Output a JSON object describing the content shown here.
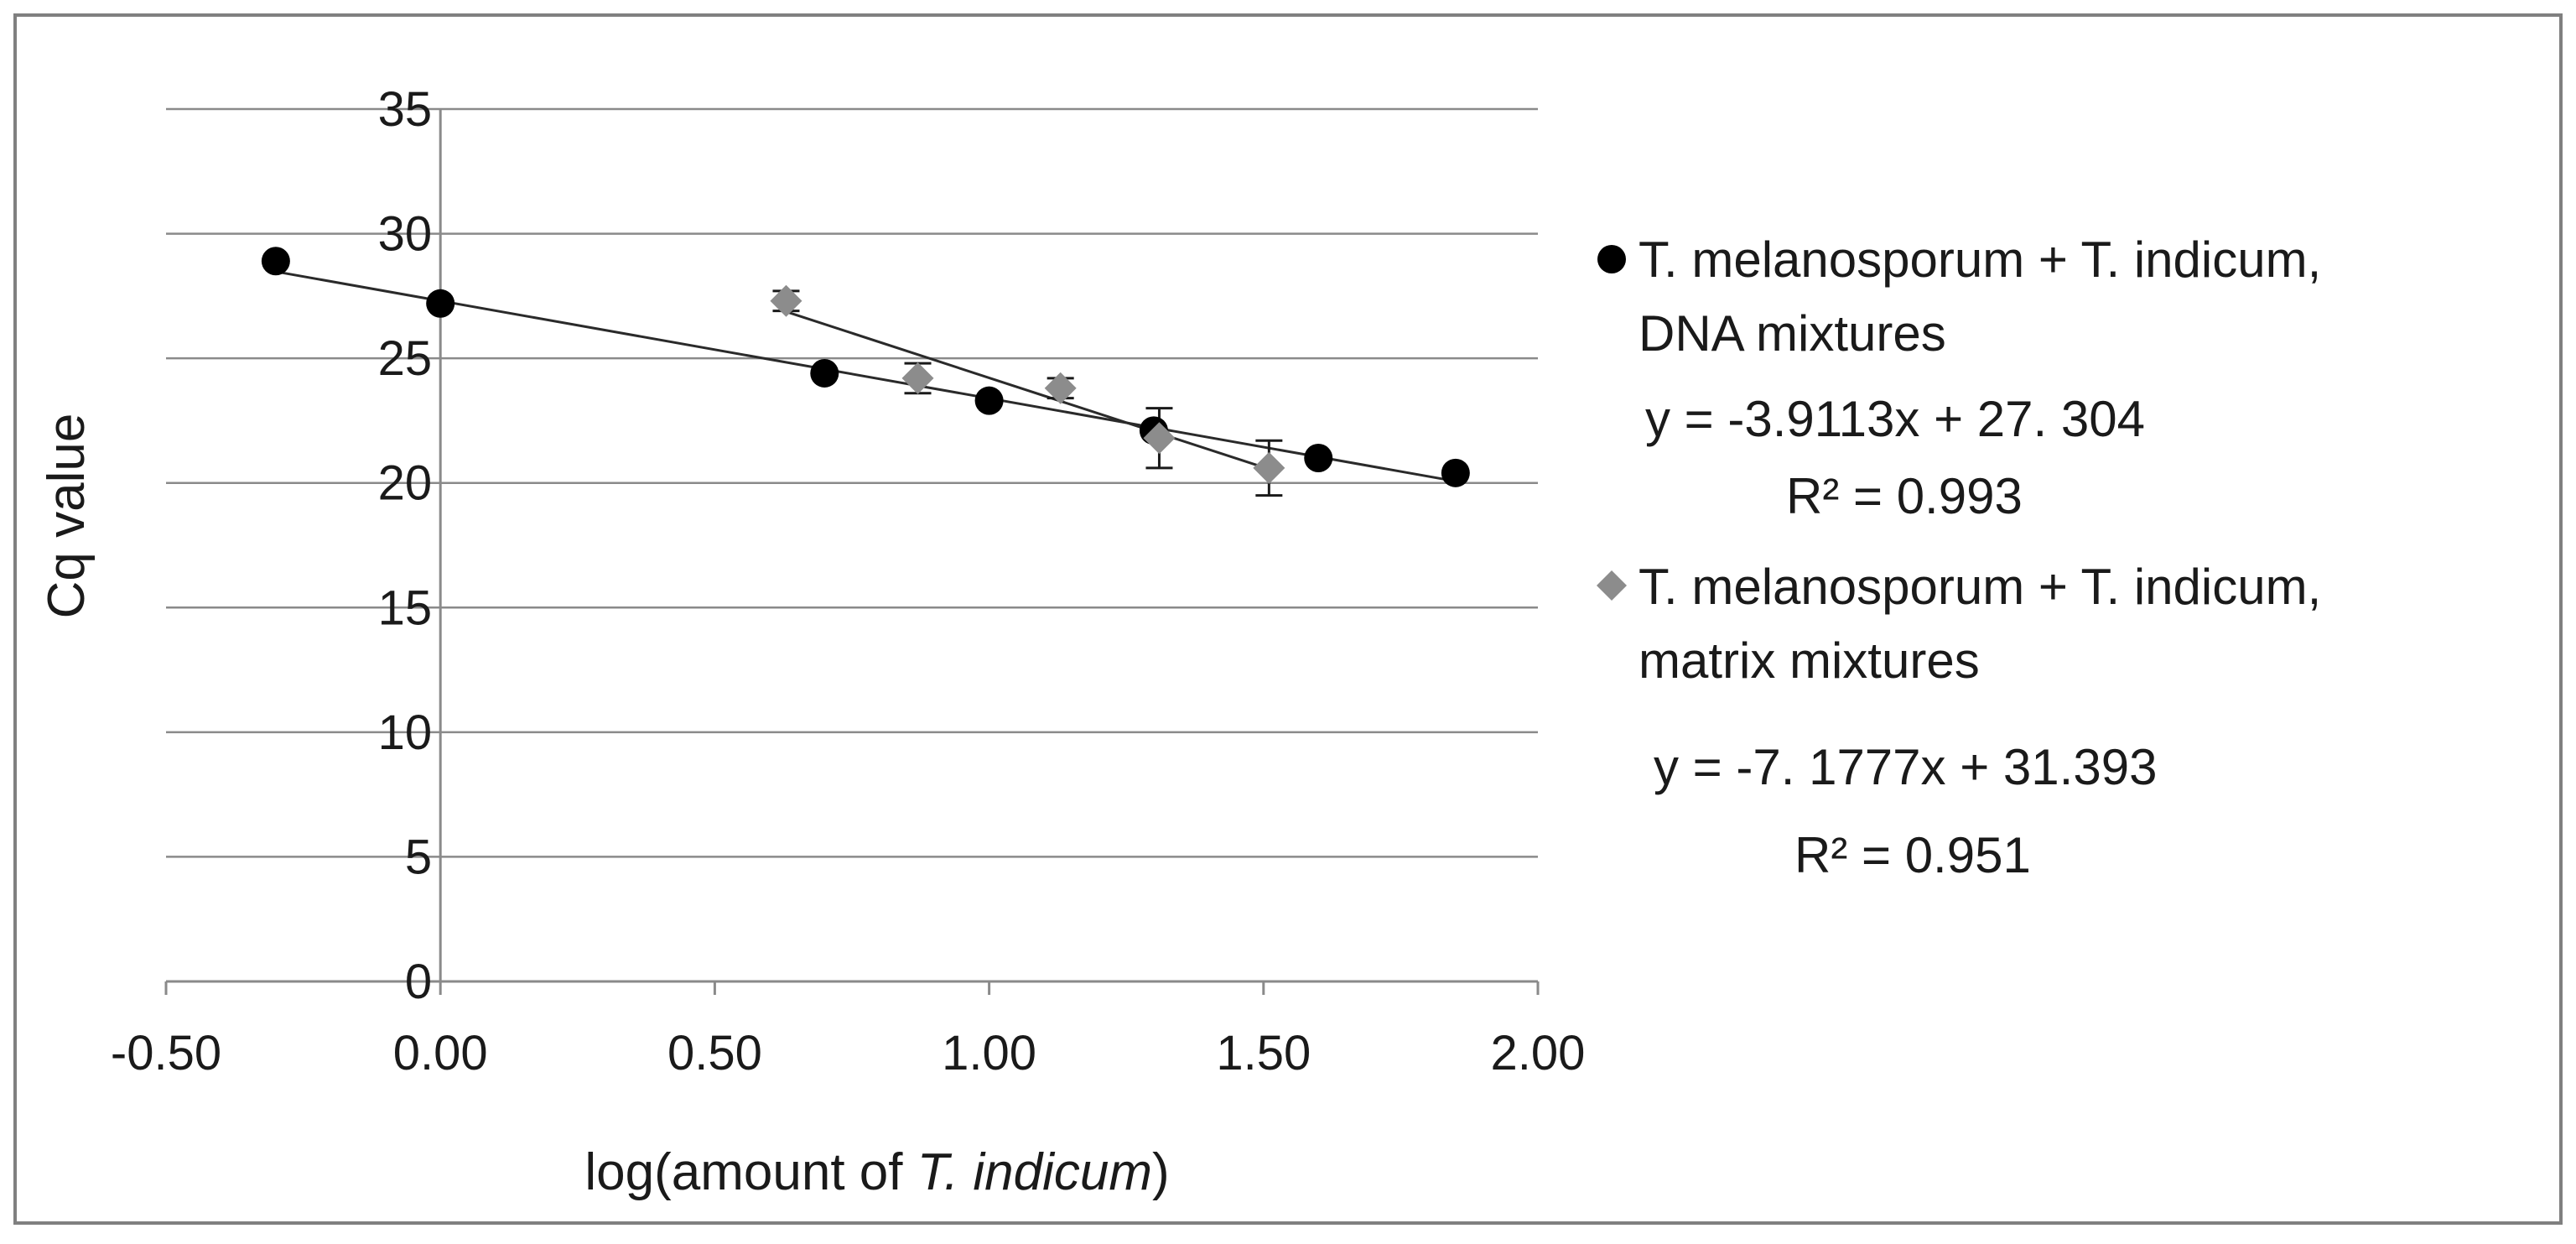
{
  "chart_data": {
    "type": "scatter",
    "title": "",
    "xlabel_prefix": "log(amount of ",
    "xlabel_italic": "T. indicum",
    "xlabel_suffix": ")",
    "ylabel": "Cq value",
    "xlim": [
      -0.5,
      2.0
    ],
    "ylim": [
      0,
      35
    ],
    "x_ticks": [
      -0.5,
      0.0,
      0.5,
      1.0,
      1.5,
      2.0
    ],
    "x_tick_labels": [
      "-0.50",
      "0.00",
      "0.50",
      "1.00",
      "1.50",
      "2.00"
    ],
    "y_ticks": [
      0,
      5,
      10,
      15,
      20,
      25,
      30,
      35
    ],
    "y_tick_labels": [
      "0",
      "5",
      "10",
      "15",
      "20",
      "25",
      "30",
      "35"
    ],
    "grid": "horizontal",
    "legend_position": "right",
    "series": [
      {
        "name_line1": "T. melanosporum + T. indicum,",
        "name_line2": "DNA mixtures",
        "equation": "y = -3.9113x + 27. 304",
        "r2": "R² = 0.993",
        "marker": "circle",
        "color": "#000000",
        "x": [
          -0.3,
          0.0,
          0.7,
          1.0,
          1.3,
          1.6,
          1.85
        ],
        "y": [
          28.9,
          27.2,
          24.4,
          23.3,
          22.1,
          21.0,
          20.4
        ],
        "err": [
          0,
          0,
          0,
          0,
          0,
          0,
          0
        ],
        "trendline": {
          "slope": -3.9113,
          "intercept": 27.304,
          "x_range": [
            -0.3,
            1.85
          ]
        }
      },
      {
        "name_line1": "T. melanosporum + T. indicum,",
        "name_line2": "matrix mixtures",
        "equation": "y = -7. 1777x + 31.393",
        "r2": "R² = 0.951",
        "marker": "diamond",
        "color": "#8c8c8c",
        "x": [
          0.63,
          0.87,
          1.13,
          1.31,
          1.51
        ],
        "y": [
          27.3,
          24.2,
          23.8,
          21.8,
          20.6
        ],
        "err": [
          0.4,
          0.6,
          0.4,
          1.2,
          1.1
        ],
        "trendline": {
          "slope": -7.1777,
          "intercept": 31.393,
          "x_range": [
            0.63,
            1.51
          ]
        }
      }
    ]
  }
}
